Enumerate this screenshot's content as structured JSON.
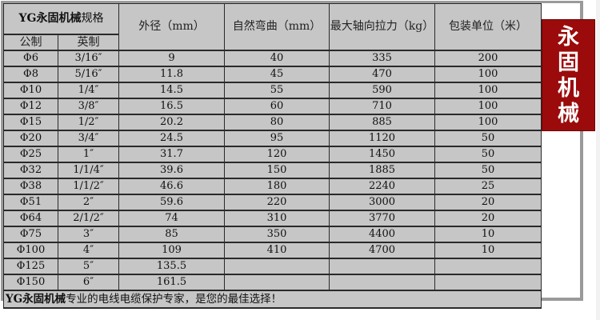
{
  "header": {
    "brand": "YG永固机械",
    "spec": "规格",
    "metric": "公制",
    "imperial": "英制",
    "outer_diameter": "外径（mm）",
    "bend": "自然弯曲（mm）",
    "tension": "最大轴向拉力（kg）",
    "package": "包装单位（米）"
  },
  "rows": [
    [
      "Φ6",
      "3/16″",
      "9",
      "40",
      "335",
      "200"
    ],
    [
      "Φ8",
      "5/16″",
      "11.8",
      "45",
      "470",
      "100"
    ],
    [
      "Φ10",
      "1/4″",
      "14.5",
      "55",
      "590",
      "100"
    ],
    [
      "Φ12",
      "3/8″",
      "16.5",
      "60",
      "710",
      "100"
    ],
    [
      "Φ15",
      "1/2″",
      "20.2",
      "80",
      "885",
      "100"
    ],
    [
      "Φ20",
      "3/4″",
      "24.5",
      "95",
      "1120",
      "50"
    ],
    [
      "Φ25",
      "1″",
      "31.7",
      "120",
      "1450",
      "50"
    ],
    [
      "Φ32",
      "1/1/4″",
      "39.6",
      "150",
      "1885",
      "50"
    ],
    [
      "Φ38",
      "1/1/2″",
      "46.6",
      "180",
      "2240",
      "25"
    ],
    [
      "Φ51",
      "2″",
      "59.6",
      "220",
      "3000",
      "20"
    ],
    [
      "Φ64",
      "2/1/2″",
      "74",
      "310",
      "3770",
      "20"
    ],
    [
      "Φ75",
      "3″",
      "85",
      "350",
      "4400",
      "10"
    ],
    [
      "Φ100",
      "4″",
      "109",
      "410",
      "4700",
      "10"
    ],
    [
      "Φ125",
      "5″",
      "135.5",
      "",
      "",
      ""
    ],
    [
      "Φ150",
      "6″",
      "161.5",
      "",
      "",
      ""
    ]
  ],
  "footer": {
    "brand": "YG永固机械",
    "slogan": "专业的电线电缆保护专家，是您的最佳选择！"
  },
  "badge": [
    "永",
    "固",
    "机",
    "械"
  ],
  "colors": {
    "table_bg": "#c6c6c6",
    "badge_red": "#9b0b0b"
  }
}
